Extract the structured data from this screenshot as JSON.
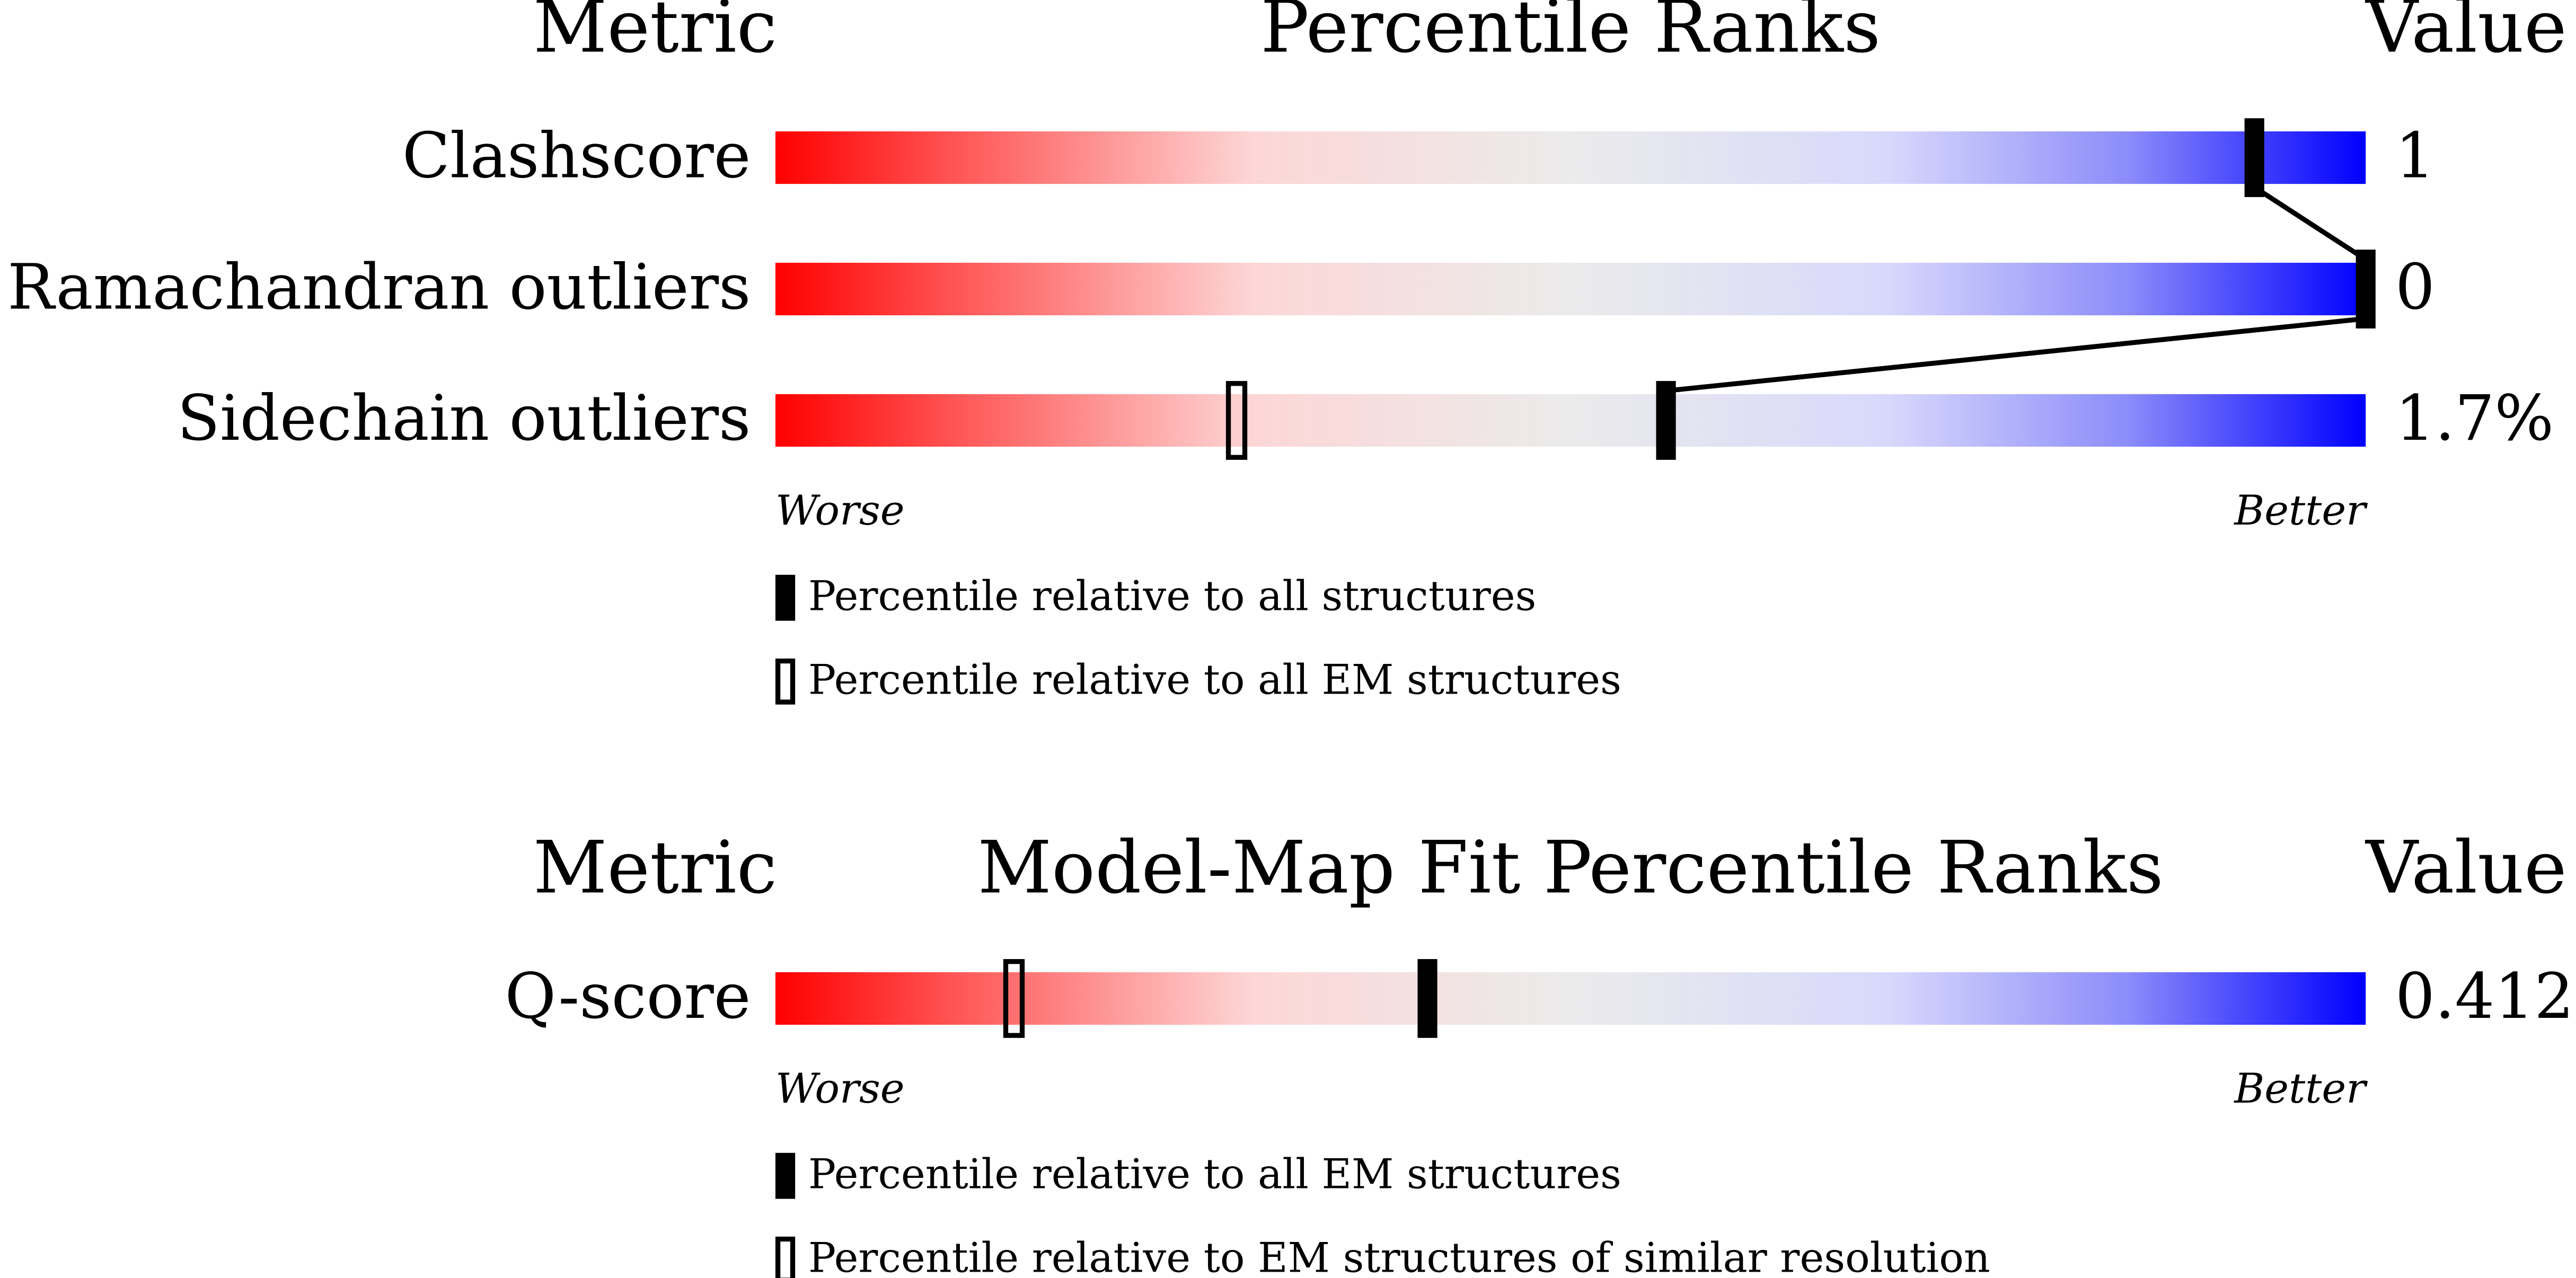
{
  "chart_data": [
    {
      "type": "slider",
      "headers": [
        "Metric",
        "Percentile Ranks",
        "Value"
      ],
      "categories": [
        "Clashscore",
        "Ramachandran outliers",
        "Sidechain outliers"
      ],
      "metric_values": [
        "1",
        "0",
        "1.7%"
      ],
      "series": [
        {
          "name": "Percentile relative to all structures",
          "marker": "filled",
          "color": "#000000",
          "values": [
            93,
            100,
            56
          ]
        },
        {
          "name": "Percentile relative to all EM structures",
          "marker": "open",
          "color": "#000000",
          "values": [
            null,
            null,
            29
          ]
        }
      ],
      "xlim": [
        0,
        100
      ],
      "worse": "Worse",
      "better": "Better"
    },
    {
      "type": "slider",
      "headers": [
        "Metric",
        "Model-Map Fit Percentile Ranks",
        "Value"
      ],
      "categories": [
        "Q-score"
      ],
      "metric_values": [
        "0.412"
      ],
      "series": [
        {
          "name": "Percentile relative to all EM structures",
          "marker": "filled",
          "color": "#000000",
          "values": [
            41
          ]
        },
        {
          "name": "Percentile relative to EM structures of similar resolution",
          "marker": "open",
          "color": "#000000",
          "values": [
            15
          ]
        }
      ],
      "xlim": [
        0,
        100
      ],
      "worse": "Worse",
      "better": "Better"
    }
  ]
}
